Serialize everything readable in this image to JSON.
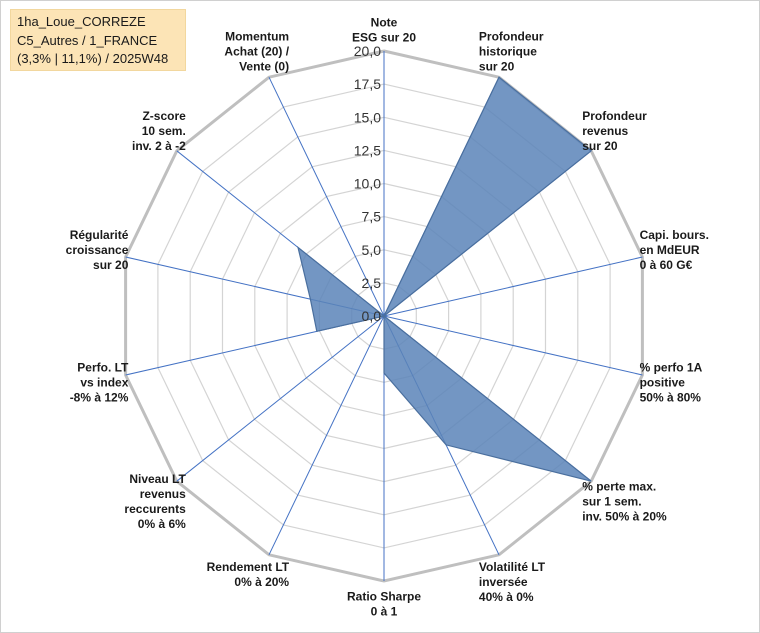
{
  "legend": {
    "line1": "1ha_Loue_CORREZE",
    "line2": "C5_Autres / 1_FRANCE",
    "line3": "(3,3% | 11,1%) / 2025W48"
  },
  "colors": {
    "series_fill": "#5b84b8",
    "series_stroke": "#4a6f9e",
    "grid": "#d4d4d4",
    "outer": "#bfbfbf",
    "spoke": "#4472c4"
  },
  "chart_data": {
    "type": "radar",
    "title": "",
    "range": [
      0,
      20
    ],
    "ticks": [
      "0,0",
      "2,5",
      "5,0",
      "7,5",
      "10,0",
      "12,5",
      "15,0",
      "17,5",
      "20,0"
    ],
    "axes": [
      [
        "Note",
        "ESG sur 20"
      ],
      [
        "Profondeur",
        "historique",
        "sur 20"
      ],
      [
        "Profondeur",
        "revenus",
        "sur 20"
      ],
      [
        "Capi. bours.",
        "en MdEUR",
        "0 à 60 G€"
      ],
      [
        "% perfo 1A",
        "positive",
        "50% à 80%"
      ],
      [
        "% perte max.",
        "sur 1 sem.",
        "inv. 50% à 20%"
      ],
      [
        "Volatilité LT",
        "inversée",
        "40% à 0%"
      ],
      [
        "Ratio Sharpe",
        "0 à 1"
      ],
      [
        "Rendement LT",
        "0% à 20%"
      ],
      [
        "Niveau LT",
        "revenus",
        "reccurents",
        "0% à 6%"
      ],
      [
        "Perfo. LT",
        "vs index",
        "-8% à 12%"
      ],
      [
        "Régularité",
        "croissance",
        "sur 20"
      ],
      [
        "Z-score",
        "10 sem.",
        "inv. 2 à -2"
      ],
      [
        "Momentum",
        "Achat (20) /",
        "Vente (0)"
      ]
    ],
    "series": [
      {
        "name": "1ha_Loue_CORREZE",
        "values": [
          0,
          20,
          20,
          0,
          0,
          20,
          10.8,
          4.3,
          0,
          0,
          5.2,
          5.7,
          8.3,
          0
        ]
      }
    ]
  }
}
